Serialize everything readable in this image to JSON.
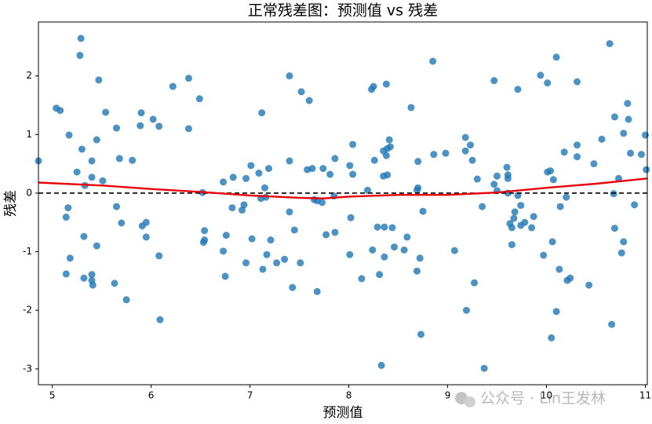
{
  "chart_data": {
    "type": "scatter",
    "title": "正常残差图：预测值 vs 残差",
    "xlabel": "预测值",
    "ylabel": "残差",
    "watermark": "公众号 · Lin王发林",
    "xlim": [
      4.86,
      11.02
    ],
    "ylim": [
      -3.27,
      2.92
    ],
    "xticks": [
      5,
      6,
      7,
      8,
      9,
      10,
      11
    ],
    "yticks": [
      -3,
      -2,
      -1,
      0,
      1,
      2
    ],
    "color": "#1f77b4",
    "x": [
      4.86,
      5.04,
      5.08,
      5.14,
      5.14,
      5.16,
      5.17,
      5.18,
      5.25,
      5.28,
      5.29,
      5.3,
      5.32,
      5.32,
      5.33,
      5.4,
      5.4,
      5.4,
      5.4,
      5.41,
      5.45,
      5.45,
      5.47,
      5.51,
      5.54,
      5.63,
      5.65,
      5.65,
      5.68,
      5.7,
      5.75,
      5.81,
      5.89,
      5.9,
      5.91,
      5.95,
      5.95,
      6.02,
      6.08,
      6.08,
      6.09,
      6.22,
      6.38,
      6.38,
      6.49,
      6.52,
      6.53,
      6.54,
      6.54,
      6.73,
      6.73,
      6.75,
      6.76,
      6.82,
      6.83,
      6.92,
      6.94,
      6.96,
      6.96,
      7.01,
      7.02,
      7.09,
      7.11,
      7.12,
      7.13,
      7.15,
      7.16,
      7.17,
      7.19,
      7.21,
      7.27,
      7.35,
      7.4,
      7.4,
      7.4,
      7.43,
      7.45,
      7.51,
      7.52,
      7.58,
      7.6,
      7.63,
      7.65,
      7.68,
      7.68,
      7.73,
      7.74,
      7.77,
      7.81,
      7.86,
      7.85,
      7.86,
      8.01,
      8.01,
      8.02,
      8.04,
      8.04,
      8.13,
      8.19,
      8.23,
      8.24,
      8.25,
      8.26,
      8.29,
      8.31,
      8.33,
      8.35,
      8.35,
      8.36,
      8.36,
      8.38,
      8.38,
      8.39,
      8.39,
      8.41,
      8.42,
      8.44,
      8.46,
      8.56,
      8.59,
      8.63,
      8.69,
      8.7,
      8.69,
      8.7,
      8.72,
      8.73,
      8.75,
      8.85,
      8.86,
      8.98,
      9.07,
      9.18,
      9.18,
      9.19,
      9.23,
      9.25,
      9.27,
      9.3,
      9.35,
      9.37,
      9.47,
      9.47,
      9.5,
      9.5,
      9.6,
      9.61,
      9.61,
      9.61,
      9.63,
      9.65,
      9.65,
      9.67,
      9.68,
      9.71,
      9.71,
      9.74,
      9.74,
      9.78,
      9.85,
      9.87,
      9.94,
      9.97,
      10.01,
      10.01,
      10.04,
      10.05,
      10.07,
      10.06,
      10.1,
      10.1,
      10.13,
      10.14,
      10.18,
      10.2,
      10.21,
      10.24,
      10.31,
      10.31,
      10.31,
      10.43,
      10.48,
      10.56,
      10.64,
      10.66,
      10.68,
      10.69,
      10.69,
      10.73,
      10.76,
      10.78,
      10.78,
      10.82,
      10.83,
      10.85,
      10.89,
      10.96,
      11.0,
      11.01
    ],
    "values": [
      0.55,
      1.45,
      1.41,
      -0.41,
      -1.38,
      -0.25,
      0.99,
      -1.11,
      0.36,
      2.35,
      2.64,
      0.75,
      -0.74,
      -1.45,
      0.13,
      0.55,
      0.27,
      -1.39,
      -1.49,
      -1.57,
      0.91,
      -0.9,
      1.93,
      0.21,
      1.38,
      -1.54,
      1.11,
      -0.23,
      0.59,
      -0.51,
      -1.82,
      0.56,
      1.15,
      1.37,
      -0.56,
      -0.5,
      -0.75,
      1.26,
      1.14,
      -1.07,
      -2.16,
      1.82,
      1.96,
      1.1,
      1.61,
      0.01,
      -0.84,
      -0.64,
      -0.8,
      0.19,
      -0.99,
      -1.42,
      -0.72,
      -0.25,
      0.27,
      -0.29,
      -0.2,
      -1.19,
      0.25,
      0.47,
      -0.78,
      0.34,
      -0.09,
      1.37,
      -1.3,
      0.09,
      -0.07,
      -1.05,
      0.42,
      -0.8,
      -1.19,
      -1.13,
      0.55,
      2.0,
      -0.32,
      -1.61,
      -0.63,
      -1.19,
      1.73,
      0.4,
      1.58,
      0.42,
      -0.11,
      -0.13,
      -1.68,
      -0.16,
      0.42,
      -0.71,
      0.32,
      -0.67,
      -0.05,
      0.59,
      0.47,
      -1.05,
      -0.42,
      0.83,
      0.32,
      -1.46,
      0.05,
      1.77,
      -0.97,
      1.82,
      0.56,
      -0.58,
      -1.39,
      -2.94,
      0.72,
      0.29,
      -0.58,
      -1.09,
      1.86,
      0.64,
      0.76,
      0.31,
      0.91,
      0.79,
      -0.59,
      -0.92,
      -0.97,
      -0.75,
      1.46,
      0.05,
      0.09,
      -1.33,
      0.54,
      -1.11,
      -2.41,
      -0.31,
      2.25,
      0.66,
      0.68,
      -0.98,
      0.95,
      0.72,
      -2.0,
      0.82,
      0.56,
      -1.53,
      0.24,
      -0.23,
      -2.99,
      1.92,
      0.15,
      0.29,
      0.04,
      0.44,
      0.0,
      0.31,
      0.25,
      -0.52,
      -0.59,
      -0.88,
      -0.43,
      -0.32,
      -0.04,
      1.77,
      -0.21,
      -0.55,
      -0.5,
      -0.59,
      -0.4,
      2.01,
      -1.06,
      1.88,
      0.36,
      0.38,
      -2.47,
      0.23,
      -0.83,
      2.32,
      -2.02,
      -1.3,
      -0.23,
      0.7,
      -0.07,
      -1.49,
      -1.45,
      0.82,
      1.9,
      0.62,
      -1.57,
      0.5,
      0.92,
      2.55,
      -2.24,
      -0.01,
      1.3,
      -0.6,
      0.25,
      -1.02,
      -0.83,
      1.02,
      1.53,
      1.26,
      0.68,
      -0.2,
      0.66,
      0.99,
      0.4
    ],
    "trend": {
      "color": "#e8000b",
      "x": [
        4.86,
        5.5,
        6,
        6.5,
        7,
        7.5,
        7.75,
        8,
        8.5,
        9,
        9.5,
        10,
        10.5,
        11.02
      ],
      "values": [
        0.18,
        0.13,
        0.07,
        0.02,
        -0.04,
        -0.08,
        -0.09,
        -0.06,
        -0.03,
        -0.03,
        0.01,
        0.09,
        0.16,
        0.25
      ]
    },
    "reference_line": {
      "value": 0,
      "color": "#000000",
      "style": "dashed"
    }
  }
}
